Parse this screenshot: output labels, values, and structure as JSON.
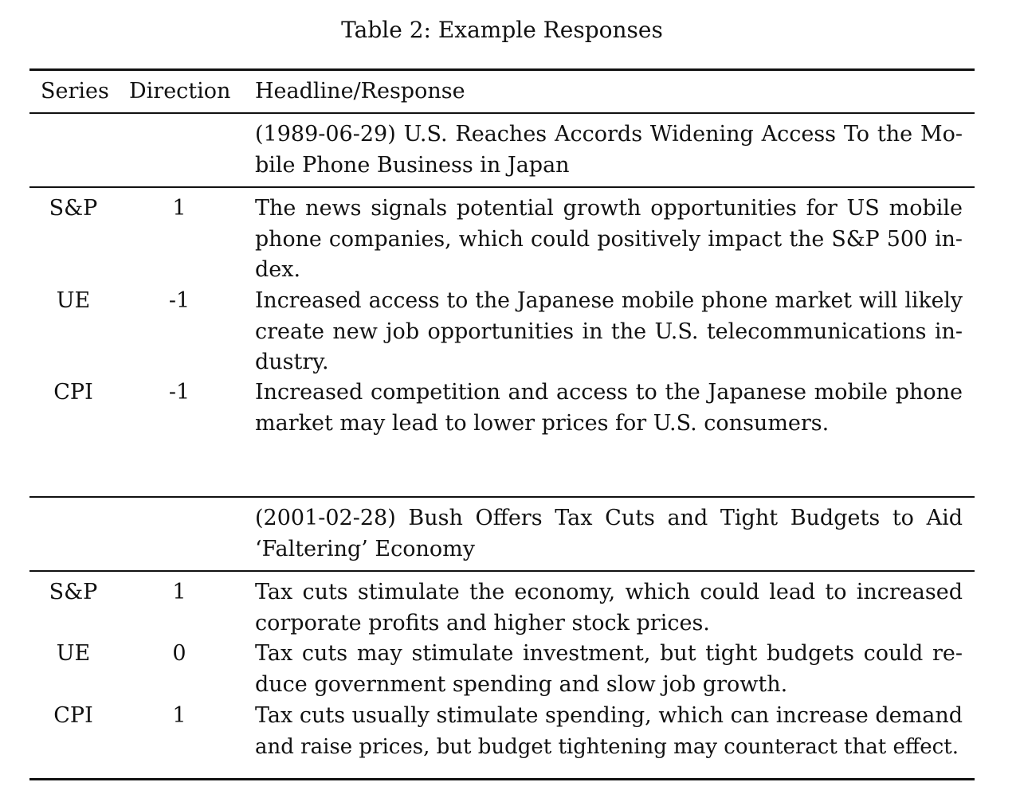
{
  "caption": "Table 2: Example Responses",
  "columns": {
    "series": "Series",
    "direction": "Direction",
    "headline": "Headline/Response"
  },
  "groups": [
    {
      "headline_lines": [
        "(1989-06-29) U.S. Reaches Accords Widening Access To the Mo-",
        "bile Phone Business in Japan"
      ],
      "rows": [
        {
          "series": "S&P",
          "direction": "1",
          "lines": [
            "The news signals potential growth opportunities for US mobile",
            "phone companies, which could positively impact the S&P 500 in-",
            "dex."
          ]
        },
        {
          "series": "UE",
          "direction": "-1",
          "lines": [
            "Increased access to the Japanese mobile phone market will likely",
            "create new job opportunities in the U.S. telecommunications in-",
            "dustry."
          ]
        },
        {
          "series": "CPI",
          "direction": "-1",
          "lines": [
            "Increased competition and access to the Japanese mobile phone",
            "market may lead to lower prices for U.S. consumers."
          ]
        }
      ]
    },
    {
      "headline_lines": [
        "(2001-02-28) Bush Offers Tax Cuts and Tight Budgets to Aid",
        "‘Faltering’ Economy"
      ],
      "rows": [
        {
          "series": "S&P",
          "direction": "1",
          "lines": [
            "Tax cuts stimulate the economy, which could lead to increased",
            "corporate profits and higher stock prices."
          ]
        },
        {
          "series": "UE",
          "direction": "0",
          "lines": [
            "Tax cuts may stimulate investment, but tight budgets could re-",
            "duce government spending and slow job growth."
          ]
        },
        {
          "series": "CPI",
          "direction": "1",
          "lines": [
            "Tax cuts usually stimulate spending, which can increase demand",
            "and raise prices, but budget tightening may counteract that effect."
          ]
        }
      ]
    }
  ]
}
